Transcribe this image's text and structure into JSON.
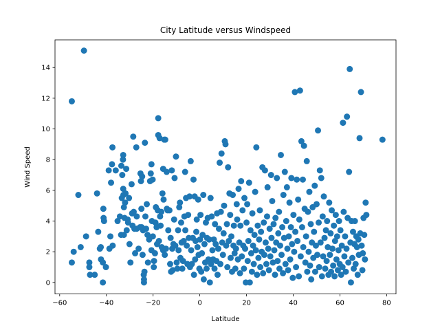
{
  "chart_data": {
    "type": "scatter",
    "title": "City Latitude versus Windspeed",
    "xlabel": "Latitude",
    "ylabel": "Wind Speed",
    "xlim": [
      -62,
      84
    ],
    "ylim": [
      -0.75,
      15.8
    ],
    "xticks": [
      -60,
      -40,
      -20,
      0,
      20,
      40,
      60,
      80
    ],
    "yticks": [
      0,
      2,
      4,
      6,
      8,
      10,
      12,
      14
    ],
    "grid": false,
    "legend": "none",
    "marker_color": "#1f77b4",
    "points": [
      [
        -54.8,
        11.8
      ],
      [
        -49.6,
        15.1
      ],
      [
        -54.8,
        1.3
      ],
      [
        -54,
        2.0
      ],
      [
        -52,
        5.7
      ],
      [
        -51,
        2.3
      ],
      [
        -48.7,
        3.0
      ],
      [
        -47.3,
        1.3
      ],
      [
        -47.3,
        1.0
      ],
      [
        -47,
        0.5
      ],
      [
        -45,
        0.5
      ],
      [
        -44,
        5.8
      ],
      [
        -43.5,
        3.3
      ],
      [
        -42.8,
        2.2
      ],
      [
        -42.3,
        1.5
      ],
      [
        -42.4,
        2.3
      ],
      [
        -41.5,
        0.0
      ],
      [
        -41.5,
        1.3
      ],
      [
        -41.2,
        4.2
      ],
      [
        -41.3,
        4.8
      ],
      [
        -41,
        4.0
      ],
      [
        -40.2,
        1.0
      ],
      [
        -39,
        7.3
      ],
      [
        -38.7,
        2.2
      ],
      [
        -38.3,
        3.0
      ],
      [
        -38,
        6.5
      ],
      [
        -37.6,
        7.7
      ],
      [
        -37.4,
        8.8
      ],
      [
        -37.3,
        2.4
      ],
      [
        -36,
        7.3
      ],
      [
        -35.2,
        4.0
      ],
      [
        -34.2,
        4.3
      ],
      [
        -33.6,
        7.6
      ],
      [
        -33.7,
        3.1
      ],
      [
        -33.4,
        5.5
      ],
      [
        -33.2,
        7.0
      ],
      [
        -32.9,
        8.0
      ],
      [
        -32.8,
        8.3
      ],
      [
        -32.8,
        6.1
      ],
      [
        -32.5,
        4.9
      ],
      [
        -32.7,
        5.7
      ],
      [
        -32.5,
        3.1
      ],
      [
        -32.2,
        4.2
      ],
      [
        -32,
        5.2
      ],
      [
        -31.8,
        5.8
      ],
      [
        -31.5,
        7.4
      ],
      [
        -31.3,
        3.4
      ],
      [
        -30.9,
        4.1
      ],
      [
        -30.7,
        3.9
      ],
      [
        -30.3,
        5.5
      ],
      [
        -30.1,
        2.5
      ],
      [
        -29.7,
        1.3
      ],
      [
        -29,
        4.5
      ],
      [
        -29.2,
        6.4
      ],
      [
        -28.5,
        9.5
      ],
      [
        -28.8,
        3.7
      ],
      [
        -28.3,
        4.6
      ],
      [
        -28,
        3.5
      ],
      [
        -27.7,
        1.9
      ],
      [
        -27.2,
        8.8
      ],
      [
        -27,
        3.5
      ],
      [
        -27,
        4.3
      ],
      [
        -26.2,
        2.2
      ],
      [
        -25.6,
        3.6
      ],
      [
        -25.4,
        7.1
      ],
      [
        -25.2,
        6.6
      ],
      [
        -25.0,
        4.8
      ],
      [
        -24.9,
        3.6
      ],
      [
        -24.7,
        6.9
      ],
      [
        -24.5,
        1.8
      ],
      [
        -24.3,
        3.4
      ],
      [
        -24.0,
        0.5
      ],
      [
        -23.9,
        0.2
      ],
      [
        -23.9,
        0.0
      ],
      [
        -23.7,
        0.7
      ],
      [
        -23.5,
        9.1
      ],
      [
        -23.3,
        4.3
      ],
      [
        -23.0,
        3.5
      ],
      [
        -22.7,
        5.1
      ],
      [
        -22.4,
        3.1
      ],
      [
        -22.2,
        1.3
      ],
      [
        -21.7,
        2.8
      ],
      [
        -21.3,
        6.6
      ],
      [
        -21.0,
        7.1
      ],
      [
        -20.7,
        7.7
      ],
      [
        -20.7,
        2.1
      ],
      [
        -20.5,
        4.0
      ],
      [
        -20.2,
        6.7
      ],
      [
        -20.1,
        3.0
      ],
      [
        -19.7,
        1.0
      ],
      [
        -19.6,
        1.4
      ],
      [
        -19.2,
        1.9
      ],
      [
        -19.0,
        3.9
      ],
      [
        -18.8,
        4.9
      ],
      [
        -18.5,
        3.6
      ],
      [
        -18.3,
        2.5
      ],
      [
        -18.0,
        4.7
      ],
      [
        -17.8,
        10.7
      ],
      [
        -17.5,
        2.7
      ],
      [
        -17.8,
        9.6
      ],
      [
        -17.2,
        9.4
      ],
      [
        -17.0,
        4.3
      ],
      [
        -16.8,
        3.7
      ],
      [
        -16.5,
        4.6
      ],
      [
        -16.3,
        2.3
      ],
      [
        -16.0,
        5.8
      ],
      [
        -15.7,
        7.4
      ],
      [
        -15.7,
        2.1
      ],
      [
        -15.5,
        5.4
      ],
      [
        -15.2,
        9.3
      ],
      [
        -15.0,
        1.8
      ],
      [
        -14.8,
        9.3
      ],
      [
        -14.5,
        2.2
      ],
      [
        -14.2,
        7.2
      ],
      [
        -14.1,
        4.8
      ],
      [
        -13.8,
        4.7
      ],
      [
        -13.5,
        3.4
      ],
      [
        -13.0,
        4.7
      ],
      [
        -12.7,
        1.2
      ],
      [
        -12.5,
        2.9
      ],
      [
        -12.3,
        0.7
      ],
      [
        -12.0,
        7.3
      ],
      [
        -11.8,
        2.2
      ],
      [
        -11.6,
        0.8
      ],
      [
        -11.3,
        2.5
      ],
      [
        -11.0,
        4.1
      ],
      [
        -10.8,
        6.8
      ],
      [
        -10.5,
        2.4
      ],
      [
        -10.2,
        8.2
      ],
      [
        -9.9,
        1.3
      ],
      [
        -9.6,
        0.9
      ],
      [
        -9.3,
        3.4
      ],
      [
        -9.1,
        2.1
      ],
      [
        -8.8,
        4.9
      ],
      [
        -8.5,
        5.2
      ],
      [
        -8.3,
        1.6
      ],
      [
        -8.0,
        3.9
      ],
      [
        -7.8,
        2.6
      ],
      [
        -7.5,
        0.9
      ],
      [
        -7.2,
        1.4
      ],
      [
        -6.9,
        2.7
      ],
      [
        -6.6,
        4.3
      ],
      [
        -6.3,
        7.2
      ],
      [
        -6.2,
        3.4
      ],
      [
        -5.9,
        5.5
      ],
      [
        -5.6,
        2.4
      ],
      [
        -5.3,
        1.2
      ],
      [
        -5.0,
        4.4
      ],
      [
        -4.7,
        2.9
      ],
      [
        -4.4,
        5.6
      ],
      [
        -4.2,
        1.0
      ],
      [
        -3.9,
        7.9
      ],
      [
        -3.7,
        2.1
      ],
      [
        -3.4,
        1.2
      ],
      [
        -3.0,
        2.9
      ],
      [
        -2.7,
        6.7
      ],
      [
        -2.5,
        0.5
      ],
      [
        -2.2,
        5.6
      ],
      [
        -2.0,
        1.5
      ],
      [
        -1.8,
        2.7
      ],
      [
        -1.5,
        3.3
      ],
      [
        -1.3,
        4.1
      ],
      [
        -1.0,
        2.3
      ],
      [
        -0.7,
        5.4
      ],
      [
        -0.5,
        1.8
      ],
      [
        -0.2,
        0.9
      ],
      [
        0.1,
        2.8
      ],
      [
        0.3,
        4.4
      ],
      [
        0.6,
        0.7
      ],
      [
        0.9,
        1.9
      ],
      [
        1.2,
        3.1
      ],
      [
        1.5,
        5.7
      ],
      [
        1.7,
        0.2
      ],
      [
        2.0,
        2.5
      ],
      [
        2.3,
        1.3
      ],
      [
        2.6,
        3.9
      ],
      [
        2.9,
        0.9
      ],
      [
        3.1,
        2.9
      ],
      [
        3.4,
        4.2
      ],
      [
        3.7,
        1.5
      ],
      [
        4.0,
        2.8
      ],
      [
        4.3,
        0.0
      ],
      [
        4.6,
        5.5
      ],
      [
        4.8,
        1.2
      ],
      [
        5.1,
        4.3
      ],
      [
        5.4,
        2.1
      ],
      [
        5.7,
        1.5
      ],
      [
        6.0,
        2.8
      ],
      [
        6.3,
        0.9
      ],
      [
        6.5,
        3.8
      ],
      [
        6.8,
        2.5
      ],
      [
        7.1,
        1.4
      ],
      [
        7.4,
        4.5
      ],
      [
        7.6,
        0.5
      ],
      [
        7.9,
        2.2
      ],
      [
        8.2,
        3.5
      ],
      [
        8.5,
        7.8
      ],
      [
        8.8,
        1.2
      ],
      [
        9.0,
        4.6
      ],
      [
        9.3,
        8.4
      ],
      [
        9.6,
        2.6
      ],
      [
        9.9,
        1.8
      ],
      [
        10.2,
        3.2
      ],
      [
        10.4,
        5.0
      ],
      [
        10.7,
        9.2
      ],
      [
        11.0,
        9.0
      ],
      [
        11.3,
        2.4
      ],
      [
        11.6,
        3.8
      ],
      [
        11.8,
        1.0
      ],
      [
        12.1,
        7.5
      ],
      [
        12.4,
        2.7
      ],
      [
        12.7,
        5.8
      ],
      [
        13.0,
        4.4
      ],
      [
        13.2,
        1.6
      ],
      [
        13.5,
        3.0
      ],
      [
        13.8,
        0.7
      ],
      [
        14.1,
        5.7
      ],
      [
        14.4,
        2.4
      ],
      [
        14.6,
        3.7
      ],
      [
        14.9,
        1.9
      ],
      [
        15.2,
        0.9
      ],
      [
        15.5,
        2.2
      ],
      [
        15.8,
        5.1
      ],
      [
        16.0,
        4.1
      ],
      [
        16.3,
        1.5
      ],
      [
        16.6,
        6.1
      ],
      [
        16.9,
        2.6
      ],
      [
        17.2,
        0.6
      ],
      [
        17.4,
        3.7
      ],
      [
        17.7,
        6.6
      ],
      [
        18.0,
        1.7
      ],
      [
        18.3,
        4.7
      ],
      [
        18.6,
        2.4
      ],
      [
        18.9,
        0.9
      ],
      [
        19.1,
        5.5
      ],
      [
        19.4,
        2.2
      ],
      [
        19.7,
        0.0
      ],
      [
        20.0,
        3.9
      ],
      [
        20.3,
        5.1
      ],
      [
        20.5,
        1.4
      ],
      [
        20.8,
        2.7
      ],
      [
        21.1,
        6.5
      ],
      [
        21.4,
        0.0
      ],
      [
        21.7,
        3.4
      ],
      [
        22.0,
        1.9
      ],
      [
        22.3,
        0.7
      ],
      [
        22.5,
        4.5
      ],
      [
        22.8,
        2.4
      ],
      [
        23.1,
        1.2
      ],
      [
        23.4,
        3.1
      ],
      [
        23.7,
        5.9
      ],
      [
        24.0,
        2.1
      ],
      [
        24.2,
        8.8
      ],
      [
        24.5,
        0.5
      ],
      [
        24.8,
        3.7
      ],
      [
        25.1,
        1.6
      ],
      [
        25.4,
        2.8
      ],
      [
        25.7,
        4.7
      ],
      [
        25.9,
        1.0
      ],
      [
        26.2,
        3.3
      ],
      [
        26.5,
        2.0
      ],
      [
        26.8,
        7.5
      ],
      [
        27.1,
        0.6
      ],
      [
        27.4,
        3.9
      ],
      [
        27.6,
        1.8
      ],
      [
        27.9,
        7.3
      ],
      [
        28.2,
        2.6
      ],
      [
        28.5,
        1.2
      ],
      [
        28.8,
        4.3
      ],
      [
        29.0,
        6.2
      ],
      [
        29.3,
        2.2
      ],
      [
        29.6,
        0.8
      ],
      [
        29.9,
        3.5
      ],
      [
        30.2,
        1.7
      ],
      [
        30.5,
        7.0
      ],
      [
        30.7,
        2.9
      ],
      [
        31.0,
        5.3
      ],
      [
        31.3,
        1.3
      ],
      [
        31.6,
        3.8
      ],
      [
        31.9,
        2.1
      ],
      [
        32.2,
        0.5
      ],
      [
        32.4,
        4.2
      ],
      [
        32.7,
        2.6
      ],
      [
        33.0,
        6.8
      ],
      [
        33.3,
        1.4
      ],
      [
        33.6,
        3.2
      ],
      [
        33.9,
        4.6
      ],
      [
        34.1,
        0.9
      ],
      [
        34.4,
        2.4
      ],
      [
        34.7,
        8.3
      ],
      [
        35.0,
        1.8
      ],
      [
        35.3,
        3.6
      ],
      [
        35.6,
        0.6
      ],
      [
        35.8,
        5.7
      ],
      [
        36.1,
        2.9
      ],
      [
        36.4,
        7.2
      ],
      [
        36.7,
        1.2
      ],
      [
        37.0,
        4.0
      ],
      [
        37.3,
        6.2
      ],
      [
        37.5,
        2.2
      ],
      [
        37.8,
        0.8
      ],
      [
        38.1,
        3.0
      ],
      [
        38.4,
        5.2
      ],
      [
        38.7,
        1.5
      ],
      [
        39.0,
        3.6
      ],
      [
        39.2,
        6.8
      ],
      [
        39.5,
        2.5
      ],
      [
        39.8,
        0.3
      ],
      [
        40.1,
        4.4
      ],
      [
        40.4,
        2.0
      ],
      [
        40.7,
        12.4
      ],
      [
        40.9,
        3.3
      ],
      [
        41.2,
        1.0
      ],
      [
        41.5,
        6.7
      ],
      [
        41.8,
        2.7
      ],
      [
        42.1,
        5.4
      ],
      [
        42.4,
        0.4
      ],
      [
        42.6,
        4.1
      ],
      [
        42.9,
        12.5
      ],
      [
        43.2,
        1.7
      ],
      [
        43.5,
        9.2
      ],
      [
        43.8,
        3.6
      ],
      [
        44.1,
        6.7
      ],
      [
        44.3,
        2.3
      ],
      [
        44.6,
        8.9
      ],
      [
        44.9,
        4.8
      ],
      [
        45.2,
        1.3
      ],
      [
        45.5,
        3.0
      ],
      [
        45.8,
        7.9
      ],
      [
        46.0,
        0.7
      ],
      [
        46.3,
        4.6
      ],
      [
        46.6,
        2.0
      ],
      [
        46.9,
        5.9
      ],
      [
        47.2,
        1.1
      ],
      [
        47.5,
        3.8
      ],
      [
        47.7,
        0.2
      ],
      [
        48.0,
        2.6
      ],
      [
        48.3,
        4.9
      ],
      [
        48.6,
        1.6
      ],
      [
        48.9,
        3.3
      ],
      [
        49.2,
        6.3
      ],
      [
        49.4,
        0.7
      ],
      [
        49.7,
        2.4
      ],
      [
        50.0,
        5.1
      ],
      [
        50.3,
        1.8
      ],
      [
        50.6,
        9.9
      ],
      [
        50.9,
        3.9
      ],
      [
        51.1,
        1.0
      ],
      [
        51.4,
        7.3
      ],
      [
        51.7,
        2.6
      ],
      [
        52.0,
        6.8
      ],
      [
        52.3,
        0.4
      ],
      [
        52.6,
        4.3
      ],
      [
        52.8,
        1.7
      ],
      [
        53.1,
        5.6
      ],
      [
        53.4,
        2.9
      ],
      [
        53.7,
        0.9
      ],
      [
        54.0,
        3.4
      ],
      [
        54.3,
        1.4
      ],
      [
        54.5,
        4.0
      ],
      [
        54.8,
        2.3
      ],
      [
        55.1,
        0.5
      ],
      [
        55.4,
        5.2
      ],
      [
        55.7,
        1.8
      ],
      [
        56.0,
        3.2
      ],
      [
        56.2,
        0.7
      ],
      [
        56.5,
        4.7
      ],
      [
        56.8,
        2.2
      ],
      [
        57.1,
        1.1
      ],
      [
        57.4,
        3.7
      ],
      [
        57.7,
        0.4
      ],
      [
        57.9,
        2.7
      ],
      [
        58.2,
        4.4
      ],
      [
        58.5,
        1.5
      ],
      [
        58.8,
        3.0
      ],
      [
        59.1,
        0.8
      ],
      [
        59.4,
        2.1
      ],
      [
        59.6,
        4.0
      ],
      [
        59.9,
        1.2
      ],
      [
        60.2,
        3.4
      ],
      [
        60.5,
        0.5
      ],
      [
        60.8,
        2.4
      ],
      [
        61.1,
        1.0
      ],
      [
        61.3,
        10.4
      ],
      [
        61.6,
        4.6
      ],
      [
        61.9,
        1.7
      ],
      [
        62.2,
        3.0
      ],
      [
        62.5,
        0.7
      ],
      [
        62.8,
        2.2
      ],
      [
        63.0,
        10.8
      ],
      [
        63.3,
        4.2
      ],
      [
        63.6,
        1.3
      ],
      [
        63.9,
        7.2
      ],
      [
        64.2,
        13.9
      ],
      [
        64.5,
        2.6
      ],
      [
        64.7,
        0.0
      ],
      [
        65.0,
        4.0
      ],
      [
        65.3,
        1.6
      ],
      [
        65.6,
        3.3
      ],
      [
        65.9,
        0.9
      ],
      [
        66.2,
        2.5
      ],
      [
        66.4,
        4.0
      ],
      [
        66.7,
        1.2
      ],
      [
        67.0,
        3.0
      ],
      [
        67.3,
        2.3
      ],
      [
        67.6,
        0.5
      ],
      [
        67.9,
        2.8
      ],
      [
        68.1,
        1.8
      ],
      [
        68.4,
        9.4
      ],
      [
        68.7,
        3.2
      ],
      [
        69.0,
        12.4
      ],
      [
        69.3,
        2.4
      ],
      [
        69.6,
        0.8
      ],
      [
        69.8,
        1.9
      ],
      [
        70.1,
        4.2
      ],
      [
        70.4,
        3.1
      ],
      [
        70.7,
        1.5
      ],
      [
        71.0,
        5.2
      ],
      [
        71.3,
        4.4
      ],
      [
        78.2,
        9.3
      ]
    ]
  }
}
